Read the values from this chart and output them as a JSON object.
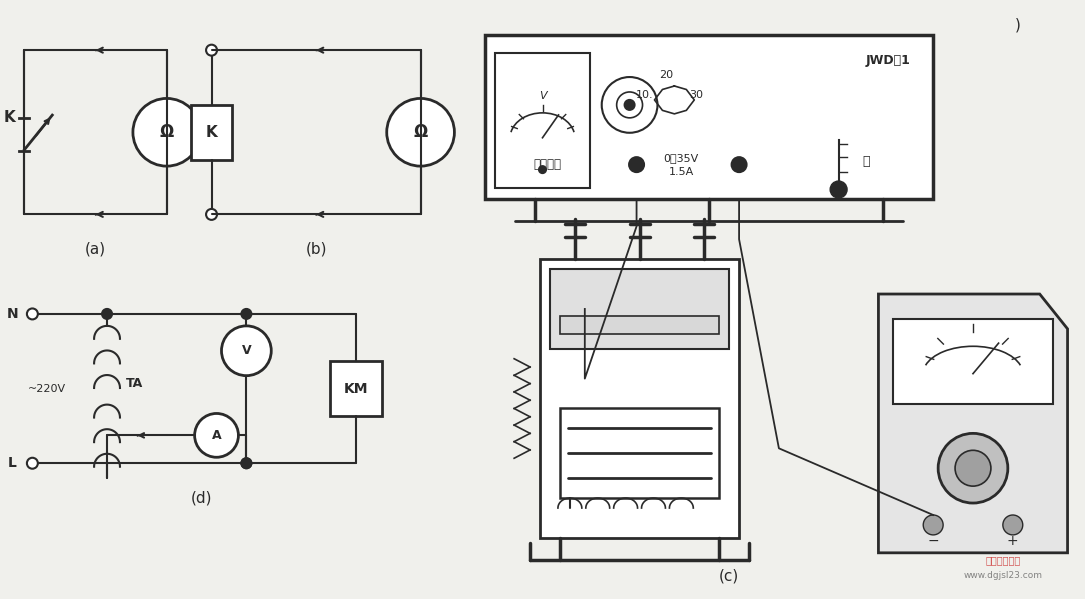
{
  "bg_color": "#f0f0ec",
  "line_color": "#2a2a2a",
  "label_a": "(a)",
  "label_b": "(b)",
  "label_c": "(c)",
  "label_d": "(d)",
  "text_K_a": "K",
  "text_K_b": "K",
  "text_omega": "Ω",
  "text_N": "N",
  "text_L": "L",
  "text_220v": "~220V",
  "text_TA": "TA",
  "text_V": "V",
  "text_A": "A",
  "text_KM": "KM",
  "text_stable_power": "稳压电源",
  "text_0_35V": "0～35V",
  "text_1_5A": "1.5A",
  "text_JWD": "JWD－1",
  "text_10": "10.",
  "text_20": "20",
  "text_30": "30",
  "text_on": "开",
  "watermark": "电工技术之家",
  "watermark2": "www.dgjsl23.com"
}
